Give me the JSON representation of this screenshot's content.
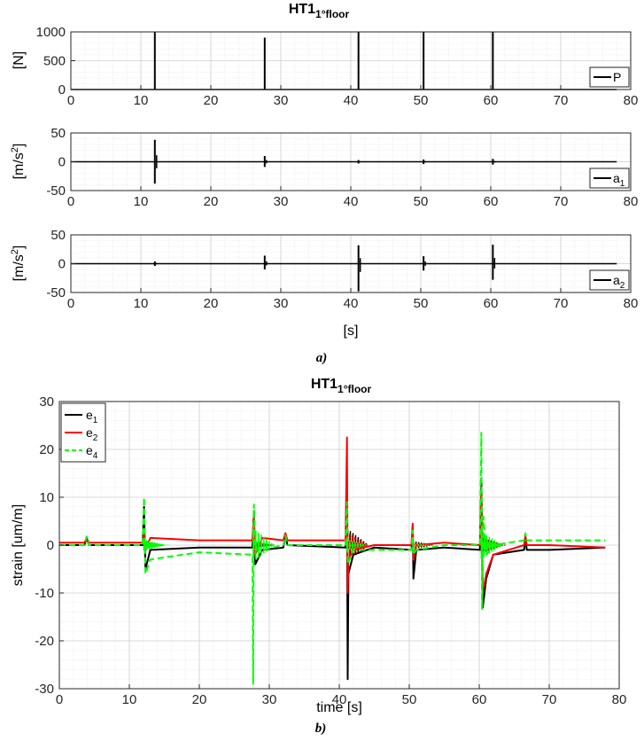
{
  "figure_a": {
    "title_main": "HT1",
    "title_sub": "1°floor",
    "caption": "a)",
    "xlabel": "[s]"
  },
  "figure_b": {
    "title_main": "HT1",
    "title_sub": "1°floor",
    "caption": "b)"
  },
  "chart_data": [
    {
      "type": "line",
      "ylabel": "[N]",
      "xlabel": "",
      "xlim": [
        0,
        80
      ],
      "ylim": [
        0,
        1000
      ],
      "xticks": [
        0,
        10,
        20,
        30,
        40,
        50,
        60,
        70,
        80
      ],
      "yticks": [
        0,
        500,
        1000
      ],
      "grid": true,
      "legend_position": "bottom-right",
      "series": [
        {
          "name": "P",
          "color": "#000000",
          "baseline": 0,
          "end_x": 78,
          "spikes": [
            {
              "x": 12.0,
              "max": 1000,
              "min": 0
            },
            {
              "x": 27.7,
              "max": 900,
              "min": 0
            },
            {
              "x": 41.1,
              "max": 1000,
              "min": 0
            },
            {
              "x": 50.4,
              "max": 1000,
              "min": 0
            },
            {
              "x": 60.3,
              "max": 1000,
              "min": 0
            }
          ]
        }
      ]
    },
    {
      "type": "line",
      "ylabel": "[m/s²]",
      "xlabel": "",
      "xlim": [
        0,
        80
      ],
      "ylim": [
        -50,
        50
      ],
      "xticks": [
        0,
        10,
        20,
        30,
        40,
        50,
        60,
        70,
        80
      ],
      "yticks": [
        -50,
        0,
        50
      ],
      "grid": true,
      "legend_position": "bottom-right",
      "series": [
        {
          "name": "a",
          "name_sub": "1",
          "color": "#000000",
          "baseline": 0,
          "end_x": 78,
          "spikes": [
            {
              "x": 12.0,
              "max": 38,
              "min": -38
            },
            {
              "x": 27.7,
              "max": 10,
              "min": -9
            },
            {
              "x": 41.1,
              "max": 3,
              "min": -3
            },
            {
              "x": 50.4,
              "max": 4,
              "min": -4
            },
            {
              "x": 60.3,
              "max": 5,
              "min": -5
            }
          ]
        }
      ]
    },
    {
      "type": "line",
      "ylabel": "[m/s²]",
      "xlabel": "[s]",
      "xlim": [
        0,
        80
      ],
      "ylim": [
        -50,
        50
      ],
      "xticks": [
        0,
        10,
        20,
        30,
        40,
        50,
        60,
        70,
        80
      ],
      "yticks": [
        -50,
        0,
        50
      ],
      "grid": true,
      "legend_position": "bottom-right",
      "series": [
        {
          "name": "a",
          "name_sub": "2",
          "color": "#000000",
          "baseline": 0,
          "end_x": 78,
          "spikes": [
            {
              "x": 12.0,
              "max": 4,
              "min": -4
            },
            {
              "x": 27.7,
              "max": 14,
              "min": -10
            },
            {
              "x": 41.1,
              "max": 32,
              "min": -48
            },
            {
              "x": 50.4,
              "max": 13,
              "min": -12
            },
            {
              "x": 60.3,
              "max": 33,
              "min": -28
            }
          ]
        }
      ]
    },
    {
      "type": "line",
      "ylabel": "strain [um/m]",
      "xlabel": "time [s]",
      "xlim": [
        0,
        80
      ],
      "ylim": [
        -30,
        30
      ],
      "xticks": [
        0,
        10,
        20,
        30,
        40,
        50,
        60,
        70,
        80
      ],
      "yticks": [
        -30,
        -20,
        -10,
        0,
        10,
        20,
        30
      ],
      "grid": true,
      "legend_position": "top-left",
      "series": [
        {
          "name": "e",
          "name_sub": "1",
          "color": "#000000",
          "style": "solid",
          "points": [
            [
              0,
              0
            ],
            [
              3.6,
              0
            ],
            [
              3.9,
              1.5
            ],
            [
              4.2,
              0
            ],
            [
              11.9,
              0
            ],
            [
              12.1,
              8
            ],
            [
              12.3,
              -5
            ],
            [
              13,
              -1
            ],
            [
              20,
              -0.5
            ],
            [
              27.6,
              -0.5
            ],
            [
              27.8,
              7
            ],
            [
              28,
              -4
            ],
            [
              29,
              -1
            ],
            [
              32,
              -0.5
            ],
            [
              32.3,
              2
            ],
            [
              32.6,
              0
            ],
            [
              40.9,
              -0.5
            ],
            [
              41.1,
              8
            ],
            [
              41.2,
              -28
            ],
            [
              41.3,
              -6
            ],
            [
              42,
              -2
            ],
            [
              45,
              -0.5
            ],
            [
              50.3,
              -1
            ],
            [
              50.5,
              4
            ],
            [
              50.6,
              -7
            ],
            [
              51,
              -1
            ],
            [
              55,
              -0.5
            ],
            [
              60.1,
              -1
            ],
            [
              60.3,
              14
            ],
            [
              60.5,
              -13
            ],
            [
              61,
              -7
            ],
            [
              62,
              -2
            ],
            [
              66.4,
              -1
            ],
            [
              66.6,
              1.5
            ],
            [
              66.8,
              -1
            ],
            [
              70,
              -1
            ],
            [
              78,
              -0.5
            ]
          ]
        },
        {
          "name": "e",
          "name_sub": "2",
          "color": "#ff0000",
          "style": "solid",
          "points": [
            [
              0,
              0.5
            ],
            [
              3.6,
              0.5
            ],
            [
              3.9,
              1.5
            ],
            [
              4.2,
              0.5
            ],
            [
              11.9,
              0.5
            ],
            [
              12.1,
              3
            ],
            [
              12.3,
              -1
            ],
            [
              13,
              1.5
            ],
            [
              20,
              1
            ],
            [
              27.6,
              1
            ],
            [
              27.8,
              6
            ],
            [
              28,
              -2
            ],
            [
              29,
              1.5
            ],
            [
              32,
              1
            ],
            [
              32.3,
              2.5
            ],
            [
              32.6,
              1
            ],
            [
              40.9,
              1
            ],
            [
              41.1,
              22.5
            ],
            [
              41.2,
              -10
            ],
            [
              41.3,
              -3
            ],
            [
              42,
              -1
            ],
            [
              45,
              0
            ],
            [
              50.3,
              0
            ],
            [
              50.5,
              4.5
            ],
            [
              50.6,
              -3
            ],
            [
              51,
              0
            ],
            [
              55,
              0.5
            ],
            [
              60.1,
              0
            ],
            [
              60.3,
              12
            ],
            [
              60.5,
              -10
            ],
            [
              61,
              -6
            ],
            [
              62,
              -2
            ],
            [
              66.4,
              0
            ],
            [
              66.6,
              2
            ],
            [
              66.8,
              0
            ],
            [
              70,
              0
            ],
            [
              78,
              -0.5
            ]
          ]
        },
        {
          "name": "e",
          "name_sub": "4",
          "color": "#00ff00",
          "style": "dashed",
          "points": [
            [
              0,
              0
            ],
            [
              3.6,
              0
            ],
            [
              3.9,
              1.8
            ],
            [
              4.2,
              0
            ],
            [
              11.9,
              0
            ],
            [
              12.1,
              10
            ],
            [
              12.3,
              -6
            ],
            [
              13,
              -3
            ],
            [
              20,
              -1.5
            ],
            [
              27.6,
              -2
            ],
            [
              27.7,
              -29
            ],
            [
              27.8,
              8.5
            ],
            [
              28,
              -1
            ],
            [
              29,
              -1
            ],
            [
              32,
              0
            ],
            [
              32.3,
              2
            ],
            [
              32.6,
              0
            ],
            [
              40.9,
              0
            ],
            [
              41.1,
              9
            ],
            [
              41.2,
              -4
            ],
            [
              42,
              -1
            ],
            [
              45,
              -1
            ],
            [
              50.3,
              -1
            ],
            [
              50.5,
              3
            ],
            [
              50.6,
              -2
            ],
            [
              51,
              -1
            ],
            [
              55,
              0
            ],
            [
              60.1,
              0
            ],
            [
              60.3,
              23.5
            ],
            [
              60.4,
              -13.5
            ],
            [
              60.6,
              6
            ],
            [
              61,
              -2
            ],
            [
              62,
              0
            ],
            [
              66.4,
              1
            ],
            [
              66.6,
              2.5
            ],
            [
              66.8,
              1
            ],
            [
              70,
              1
            ],
            [
              78,
              1
            ]
          ]
        }
      ]
    }
  ]
}
